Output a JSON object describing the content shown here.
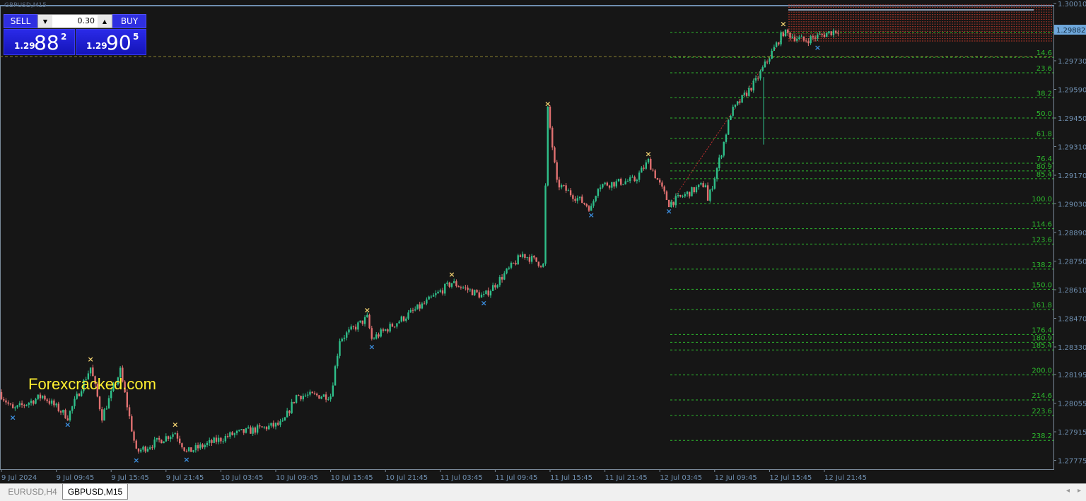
{
  "window": {
    "title": "GBPUSD,M15"
  },
  "trade_panel": {
    "sell_label": "SELL",
    "buy_label": "BUY",
    "lot_value": "0.30",
    "sell_price": {
      "prefix": "1.29",
      "big": "88",
      "sup": "2"
    },
    "buy_price": {
      "prefix": "1.29",
      "big": "90",
      "sup": "5"
    }
  },
  "watermark": "Forexcracked.com",
  "tabs": [
    {
      "label": "EURUSD,H4",
      "active": false
    },
    {
      "label": "GBPUSD,M15",
      "active": true
    }
  ],
  "colors": {
    "background": "#161616",
    "bull": "#2fbf8a",
    "bear": "#e07070",
    "fib": "#2db82d",
    "axis_text": "#6f8fb0",
    "bid_label": "#6fa8dc",
    "zone": "#c0392b",
    "high_marker": "#f0d070",
    "low_marker": "#3c8fe0"
  },
  "chart_data": {
    "type": "candlestick",
    "symbol": "GBPUSD",
    "timeframe": "M15",
    "current_price": "1.29882",
    "y_ticks": [
      "1.30010",
      "1.29730",
      "1.29590",
      "1.29450",
      "1.29310",
      "1.29170",
      "1.29030",
      "1.28890",
      "1.28750",
      "1.28610",
      "1.28470",
      "1.28330",
      "1.28195",
      "1.28055",
      "1.27915",
      "1.27775"
    ],
    "ylim": [
      1.2775,
      1.3002
    ],
    "x_ticks": [
      "9 Jul 2024",
      "9 Jul 09:45",
      "9 Jul 15:45",
      "9 Jul 21:45",
      "10 Jul 03:45",
      "10 Jul 09:45",
      "10 Jul 15:45",
      "10 Jul 21:45",
      "11 Jul 03:45",
      "11 Jul 09:45",
      "11 Jul 15:45",
      "11 Jul 21:45",
      "12 Jul 03:45",
      "12 Jul 09:45",
      "12 Jul 15:45",
      "12 Jul 21:45"
    ],
    "price_path": [
      [
        "09 03:30",
        1.28109
      ],
      [
        "09 05:00",
        1.28022
      ],
      [
        "09 08:15",
        1.28091
      ],
      [
        "09 11:00",
        1.27988
      ],
      [
        "09 13:30",
        1.2823
      ],
      [
        "09 14:45",
        1.27988
      ],
      [
        "09 16:45",
        1.28213
      ],
      [
        "09 18:30",
        1.27815
      ],
      [
        "09 22:45",
        1.27912
      ],
      [
        "10 00:00",
        1.27815
      ],
      [
        "10 05:00",
        1.27902
      ],
      [
        "10 10:30",
        1.27954
      ],
      [
        "10 12:00",
        1.28092
      ],
      [
        "10 15:45",
        1.28092
      ],
      [
        "10 16:45",
        1.28368
      ],
      [
        "10 19:45",
        1.28472
      ],
      [
        "10 20:15",
        1.28368
      ],
      [
        "11 02:00",
        1.28541
      ],
      [
        "11 05:00",
        1.28645
      ],
      [
        "11 08:30",
        1.28576
      ],
      [
        "11 12:45",
        1.28783
      ],
      [
        "11 15:00",
        1.28731
      ],
      [
        "11 15:30",
        1.29491
      ],
      [
        "11 16:30",
        1.29129
      ],
      [
        "11 20:15",
        1.29008
      ],
      [
        "11 21:00",
        1.29121
      ],
      [
        "12 01:00",
        1.29146
      ],
      [
        "12 02:30",
        1.29239
      ],
      [
        "12 04:45",
        1.29031
      ],
      [
        "12 08:45",
        1.29129
      ],
      [
        "12 09:00",
        1.29043
      ],
      [
        "12 10:30",
        1.29284
      ],
      [
        "12 11:30",
        1.29474
      ],
      [
        "12 14:15",
        1.2963
      ],
      [
        "12 15:45",
        1.29751
      ],
      [
        "12 17:15",
        1.29869
      ],
      [
        "12 19:30",
        1.29828
      ],
      [
        "12 23:15",
        1.29882
      ]
    ],
    "swing_highs": [
      [
        "09 13:30",
        1.2825
      ],
      [
        "09 22:45",
        1.2793
      ],
      [
        "10 19:45",
        1.2849
      ],
      [
        "11 05:00",
        1.28665
      ],
      [
        "11 15:30",
        1.295
      ],
      [
        "12 02:30",
        1.29255
      ],
      [
        "12 17:15",
        1.2989
      ]
    ],
    "swing_lows": [
      [
        "09 05:00",
        1.28
      ],
      [
        "09 11:00",
        1.27965
      ],
      [
        "09 18:30",
        1.2779
      ],
      [
        "10 00:00",
        1.27795
      ],
      [
        "10 20:15",
        1.28345
      ],
      [
        "11 08:30",
        1.2856
      ],
      [
        "11 20:15",
        1.2899
      ],
      [
        "12 04:45",
        1.2901
      ],
      [
        "12 21:00",
        1.2981
      ]
    ],
    "fibonacci": {
      "from_price": 1.29031,
      "to_price": 1.29869,
      "levels": [
        "14.6",
        "23.6",
        "38.2",
        "50.0",
        "61.8",
        "76.4",
        "80.9",
        "85.4",
        "100.0",
        "114.6",
        "123.6",
        "138.2",
        "150.0",
        "161.8",
        "176.4",
        "180.9",
        "185.4",
        "200.0",
        "214.6",
        "223.6",
        "238.2"
      ]
    }
  }
}
